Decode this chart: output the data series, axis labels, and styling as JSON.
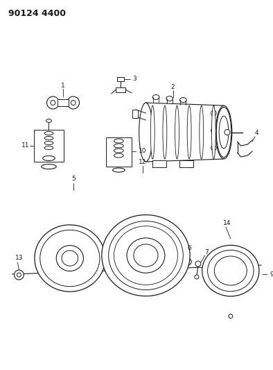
{
  "title": "90124 4400",
  "bg_color": "#ffffff",
  "line_color": "#1a1a1a",
  "fig_width": 3.94,
  "fig_height": 5.33,
  "dpi": 100
}
